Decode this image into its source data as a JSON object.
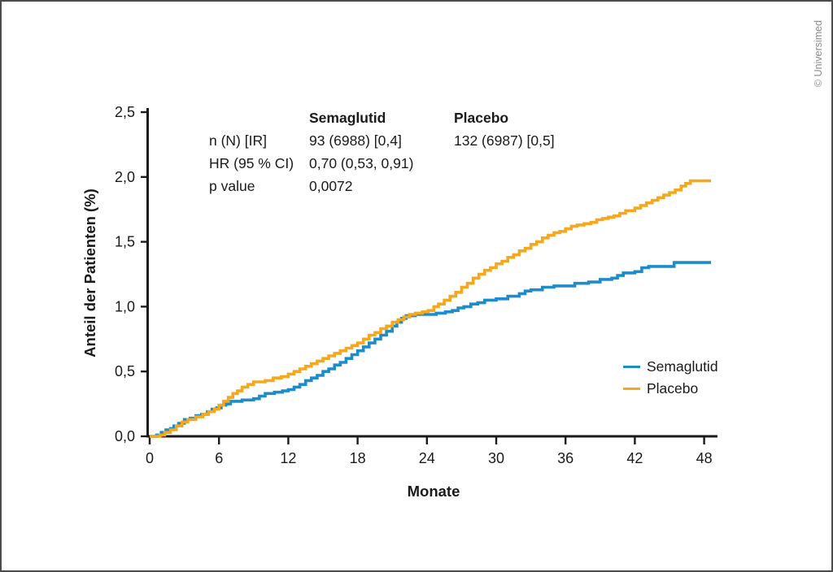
{
  "page": {
    "background": "#ffffff",
    "border_color": "#4b4b4b",
    "copyright": "© Universimed"
  },
  "stats_table": {
    "columns": [
      "",
      "Semaglutid",
      "Placebo"
    ],
    "rows": [
      {
        "label": "n (N) [IR]",
        "semaglutid": "93 (6988) [0,4]",
        "placebo": "132 (6987) [0,5]"
      },
      {
        "label": "HR (95 % CI)",
        "semaglutid": "0,70 (0,53, 0,91)",
        "placebo": ""
      },
      {
        "label": "p value",
        "semaglutid": "0,0072",
        "placebo": ""
      }
    ]
  },
  "legend": {
    "items": [
      {
        "label": "Semaglutid",
        "color": "#1E8CCB"
      },
      {
        "label": "Placebo",
        "color": "#F5A81D"
      }
    ]
  },
  "chart_data": {
    "type": "line",
    "subtype": "step-cumulative-incidence",
    "title": "",
    "xlabel": "Monate",
    "ylabel": "Anteil der Patienten (%)",
    "xlim": [
      0,
      49.2
    ],
    "ylim": [
      0,
      2.5
    ],
    "grid": false,
    "legend_position": "right-lower",
    "axis_color": "#1a1a1a",
    "x_ticks": [
      {
        "v": 0,
        "label": "0"
      },
      {
        "v": 6,
        "label": "6"
      },
      {
        "v": 12,
        "label": "12"
      },
      {
        "v": 18,
        "label": "18"
      },
      {
        "v": 24,
        "label": "24"
      },
      {
        "v": 30,
        "label": "30"
      },
      {
        "v": 36,
        "label": "36"
      },
      {
        "v": 42,
        "label": "42"
      },
      {
        "v": 48,
        "label": "48"
      }
    ],
    "y_ticks": [
      {
        "v": 0.0,
        "label": "0,0"
      },
      {
        "v": 0.5,
        "label": "0,5"
      },
      {
        "v": 1.0,
        "label": "1,0"
      },
      {
        "v": 1.5,
        "label": "1,5"
      },
      {
        "v": 2.0,
        "label": "2,0"
      },
      {
        "v": 2.5,
        "label": "2,5"
      }
    ],
    "series": [
      {
        "name": "Semaglutid",
        "color": "#1E8CCB",
        "points": [
          [
            0,
            0
          ],
          [
            0.6,
            0.01
          ],
          [
            1,
            0.03
          ],
          [
            1.4,
            0.05
          ],
          [
            1.8,
            0.06
          ],
          [
            2.1,
            0.08
          ],
          [
            2.5,
            0.1
          ],
          [
            3,
            0.13
          ],
          [
            3.5,
            0.14
          ],
          [
            4,
            0.16
          ],
          [
            4.5,
            0.17
          ],
          [
            5,
            0.19
          ],
          [
            5.4,
            0.21
          ],
          [
            5.8,
            0.22
          ],
          [
            6.2,
            0.24
          ],
          [
            6.6,
            0.25
          ],
          [
            7,
            0.27
          ],
          [
            8,
            0.28
          ],
          [
            9,
            0.29
          ],
          [
            9.5,
            0.31
          ],
          [
            10,
            0.33
          ],
          [
            10.8,
            0.34
          ],
          [
            11.5,
            0.35
          ],
          [
            12,
            0.36
          ],
          [
            12.5,
            0.38
          ],
          [
            13,
            0.4
          ],
          [
            13.5,
            0.43
          ],
          [
            14,
            0.45
          ],
          [
            14.5,
            0.47
          ],
          [
            15,
            0.5
          ],
          [
            15.5,
            0.52
          ],
          [
            16,
            0.55
          ],
          [
            16.5,
            0.57
          ],
          [
            17,
            0.6
          ],
          [
            17.5,
            0.63
          ],
          [
            18,
            0.66
          ],
          [
            18.5,
            0.69
          ],
          [
            19,
            0.72
          ],
          [
            19.5,
            0.75
          ],
          [
            20,
            0.78
          ],
          [
            20.5,
            0.81
          ],
          [
            21,
            0.85
          ],
          [
            21.4,
            0.88
          ],
          [
            21.8,
            0.91
          ],
          [
            22.2,
            0.93
          ],
          [
            23,
            0.94
          ],
          [
            24.8,
            0.95
          ],
          [
            25.6,
            0.96
          ],
          [
            26.2,
            0.97
          ],
          [
            26.7,
            0.99
          ],
          [
            27.2,
            1
          ],
          [
            27.8,
            1.02
          ],
          [
            28.4,
            1.03
          ],
          [
            29,
            1.05
          ],
          [
            30,
            1.06
          ],
          [
            31,
            1.08
          ],
          [
            32,
            1.1
          ],
          [
            32.5,
            1.12
          ],
          [
            33,
            1.13
          ],
          [
            34,
            1.15
          ],
          [
            35,
            1.16
          ],
          [
            36.8,
            1.18
          ],
          [
            38,
            1.19
          ],
          [
            39,
            1.21
          ],
          [
            40,
            1.22
          ],
          [
            40.5,
            1.24
          ],
          [
            41,
            1.26
          ],
          [
            42,
            1.27
          ],
          [
            42.6,
            1.3
          ],
          [
            43.2,
            1.31
          ],
          [
            45.4,
            1.34
          ],
          [
            48.6,
            1.34
          ]
        ]
      },
      {
        "name": "Placebo",
        "color": "#F5A81D",
        "points": [
          [
            0,
            0
          ],
          [
            0.9,
            0.01
          ],
          [
            1.3,
            0.03
          ],
          [
            1.8,
            0.05
          ],
          [
            2.3,
            0.08
          ],
          [
            2.8,
            0.11
          ],
          [
            3.3,
            0.13
          ],
          [
            4,
            0.15
          ],
          [
            4.6,
            0.17
          ],
          [
            5.1,
            0.19
          ],
          [
            5.6,
            0.21
          ],
          [
            6,
            0.24
          ],
          [
            6.4,
            0.27
          ],
          [
            6.8,
            0.3
          ],
          [
            7.2,
            0.33
          ],
          [
            7.6,
            0.35
          ],
          [
            8,
            0.38
          ],
          [
            8.5,
            0.4
          ],
          [
            9,
            0.42
          ],
          [
            10,
            0.43
          ],
          [
            10.7,
            0.45
          ],
          [
            11.4,
            0.46
          ],
          [
            12,
            0.48
          ],
          [
            12.5,
            0.5
          ],
          [
            13,
            0.52
          ],
          [
            13.5,
            0.54
          ],
          [
            14,
            0.56
          ],
          [
            14.5,
            0.58
          ],
          [
            15,
            0.6
          ],
          [
            15.5,
            0.62
          ],
          [
            16,
            0.64
          ],
          [
            16.5,
            0.66
          ],
          [
            17,
            0.68
          ],
          [
            17.5,
            0.7
          ],
          [
            18,
            0.72
          ],
          [
            18.5,
            0.75
          ],
          [
            19,
            0.78
          ],
          [
            19.5,
            0.8
          ],
          [
            20,
            0.83
          ],
          [
            20.5,
            0.85
          ],
          [
            21,
            0.88
          ],
          [
            21.5,
            0.9
          ],
          [
            22,
            0.92
          ],
          [
            22.5,
            0.94
          ],
          [
            23,
            0.95
          ],
          [
            23.6,
            0.96
          ],
          [
            24.1,
            0.97
          ],
          [
            24.6,
            1
          ],
          [
            25,
            1.02
          ],
          [
            25.5,
            1.05
          ],
          [
            26,
            1.08
          ],
          [
            26.5,
            1.11
          ],
          [
            27,
            1.15
          ],
          [
            27.5,
            1.18
          ],
          [
            28,
            1.22
          ],
          [
            28.5,
            1.25
          ],
          [
            29,
            1.28
          ],
          [
            29.5,
            1.3
          ],
          [
            30,
            1.33
          ],
          [
            30.5,
            1.35
          ],
          [
            31,
            1.38
          ],
          [
            31.5,
            1.4
          ],
          [
            32,
            1.43
          ],
          [
            32.5,
            1.45
          ],
          [
            33,
            1.48
          ],
          [
            33.5,
            1.5
          ],
          [
            34,
            1.53
          ],
          [
            34.5,
            1.55
          ],
          [
            35,
            1.57
          ],
          [
            35.5,
            1.58
          ],
          [
            36,
            1.6
          ],
          [
            36.5,
            1.62
          ],
          [
            37,
            1.63
          ],
          [
            37.6,
            1.64
          ],
          [
            38.2,
            1.65
          ],
          [
            38.7,
            1.67
          ],
          [
            39.2,
            1.68
          ],
          [
            39.7,
            1.69
          ],
          [
            40.2,
            1.7
          ],
          [
            40.7,
            1.72
          ],
          [
            41.2,
            1.74
          ],
          [
            42,
            1.76
          ],
          [
            42.5,
            1.78
          ],
          [
            43,
            1.8
          ],
          [
            43.5,
            1.82
          ],
          [
            44,
            1.84
          ],
          [
            44.5,
            1.86
          ],
          [
            45,
            1.88
          ],
          [
            45.5,
            1.9
          ],
          [
            46,
            1.93
          ],
          [
            46.4,
            1.95
          ],
          [
            46.8,
            1.97
          ],
          [
            48.6,
            1.97
          ]
        ]
      }
    ]
  }
}
